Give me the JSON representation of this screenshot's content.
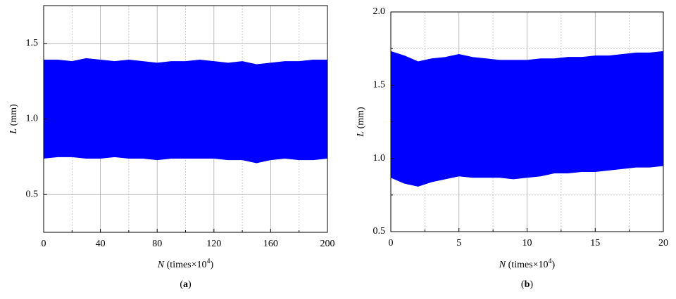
{
  "chart_data": [
    {
      "type": "band",
      "color": "#0000ff",
      "x": [
        0,
        10,
        20,
        30,
        40,
        50,
        60,
        70,
        80,
        90,
        100,
        110,
        120,
        130,
        140,
        150,
        160,
        170,
        180,
        190,
        200
      ],
      "upper": [
        1.39,
        1.39,
        1.38,
        1.4,
        1.39,
        1.38,
        1.39,
        1.38,
        1.37,
        1.38,
        1.38,
        1.39,
        1.38,
        1.37,
        1.38,
        1.36,
        1.37,
        1.38,
        1.38,
        1.39,
        1.39
      ],
      "lower": [
        0.74,
        0.75,
        0.75,
        0.74,
        0.74,
        0.75,
        0.74,
        0.74,
        0.73,
        0.74,
        0.74,
        0.74,
        0.74,
        0.73,
        0.73,
        0.71,
        0.73,
        0.74,
        0.73,
        0.73,
        0.74
      ],
      "xlim": [
        0,
        200
      ],
      "ylim": [
        0.25,
        1.75
      ],
      "xticks": [
        0,
        40,
        80,
        120,
        160,
        200
      ],
      "yticks": [
        0.5,
        {
          "value": 1.0,
          "label": "1.0"
        },
        1.5
      ],
      "xminor": [
        20,
        60,
        100,
        140,
        180
      ],
      "yminor": [],
      "grid": true,
      "ylabel": [
        "L",
        " (mm)"
      ],
      "xlabel": [
        "N",
        " (times×10",
        "4",
        ")"
      ],
      "panel_label": [
        "(",
        "a",
        ")"
      ]
    },
    {
      "type": "band",
      "color": "#0000ff",
      "x": [
        0,
        1,
        2,
        3,
        4,
        5,
        6,
        7,
        8,
        9,
        10,
        11,
        12,
        13,
        14,
        15,
        16,
        17,
        18,
        19,
        20
      ],
      "upper": [
        1.73,
        1.7,
        1.66,
        1.68,
        1.69,
        1.71,
        1.69,
        1.68,
        1.67,
        1.67,
        1.67,
        1.68,
        1.68,
        1.69,
        1.69,
        1.7,
        1.7,
        1.71,
        1.72,
        1.72,
        1.73
      ],
      "lower": [
        0.87,
        0.83,
        0.81,
        0.84,
        0.86,
        0.88,
        0.87,
        0.87,
        0.87,
        0.86,
        0.87,
        0.88,
        0.9,
        0.9,
        0.91,
        0.91,
        0.92,
        0.93,
        0.94,
        0.94,
        0.95
      ],
      "xlim": [
        0,
        20
      ],
      "ylim": [
        0.5,
        2.0
      ],
      "xticks": [
        0,
        5,
        10,
        15,
        20
      ],
      "yticks": [
        0.5,
        {
          "value": 1.0,
          "label": "1.0"
        },
        1.5,
        {
          "value": 2.0,
          "label": "2.0"
        }
      ],
      "xminor": [
        2.5,
        7.5,
        12.5,
        17.5
      ],
      "yminor": [
        0.75,
        1.25,
        1.75
      ],
      "grid": true,
      "ylabel": [
        "L",
        " (mm)"
      ],
      "xlabel": [
        "N",
        " (times×10",
        "4",
        ")"
      ],
      "panel_label": [
        "(",
        "b",
        ")"
      ]
    }
  ]
}
